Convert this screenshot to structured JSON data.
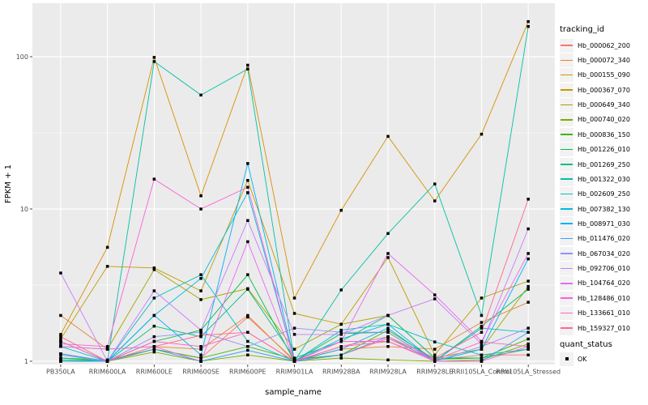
{
  "colors": {
    "panel_background": "#EBEBEB",
    "gridline_major": "#FFFFFF",
    "gridline_minor": "#F5F5F5",
    "legend_key_background": "#F2F2F2",
    "axis_text": "#4D4D4D",
    "axis_tick": "#333333",
    "axis_title": "#000000",
    "point": "#000000"
  },
  "legend": {
    "tracking_title": "tracking_id",
    "quant_title": "quant_status",
    "quant_items": [
      {
        "label": "OK",
        "marker": "black-square"
      }
    ]
  },
  "chart_data": {
    "type": "line",
    "title": "",
    "xlabel": "sample_name",
    "ylabel": "FPKM + 1",
    "y_scale": "log10",
    "ylim": [
      1,
      200
    ],
    "y_ticks": [
      1,
      10,
      100
    ],
    "grid": "white major gridlines with log minor lines on gray panel",
    "legend_position": "right",
    "point_marker": "filled-black-square",
    "categories": [
      "PB350LA",
      "RRIM600LA",
      "RRIM600LE",
      "RRIM600SE",
      "RRIM600PE",
      "RRIM901LA",
      "RRIM928BA",
      "RRIM928LA",
      "RRIM928LE",
      "RRII105LA_Control",
      "RRII105LA_Stressed"
    ],
    "series": [
      {
        "name": "Hb_000062_200",
        "color": "#F8766D",
        "values": [
          1.12,
          1.0,
          1.2,
          1.05,
          1.95,
          1.02,
          1.1,
          1.41,
          1.02,
          1.1,
          1.1
        ]
      },
      {
        "name": "Hb_000072_340",
        "color": "#EA8331",
        "values": [
          2.0,
          1.2,
          1.25,
          1.2,
          2.0,
          1.0,
          1.2,
          1.25,
          1.2,
          1.8,
          2.44
        ]
      },
      {
        "name": "Hb_000155_090",
        "color": "#D89000",
        "values": [
          1.5,
          5.6,
          99.0,
          12.2,
          88.0,
          2.6,
          9.8,
          30.0,
          11.3,
          31.0,
          170.0
        ]
      },
      {
        "name": "Hb_000367_070",
        "color": "#C09B00",
        "values": [
          1.4,
          4.2,
          4.1,
          2.9,
          15.4,
          2.06,
          1.75,
          4.8,
          1.1,
          2.6,
          3.36
        ]
      },
      {
        "name": "Hb_000649_340",
        "color": "#A3A500",
        "values": [
          1.25,
          1.2,
          4.0,
          2.54,
          3.0,
          1.2,
          1.75,
          2.0,
          1.05,
          1.2,
          3.1
        ]
      },
      {
        "name": "Hb_000740_020",
        "color": "#7CAE00",
        "values": [
          1.0,
          1.0,
          1.15,
          1.0,
          1.1,
          1.0,
          1.05,
          1.02,
          1.0,
          1.02,
          1.3
        ]
      },
      {
        "name": "Hb_000836_150",
        "color": "#39B600",
        "values": [
          1.05,
          1.02,
          1.2,
          1.05,
          1.25,
          1.03,
          1.1,
          1.6,
          1.03,
          1.05,
          1.4
        ]
      },
      {
        "name": "Hb_001226_010",
        "color": "#00BB4E",
        "values": [
          1.02,
          1.0,
          1.35,
          1.6,
          3.7,
          1.0,
          1.52,
          1.55,
          1.0,
          1.7,
          2.97
        ]
      },
      {
        "name": "Hb_001269_250",
        "color": "#00BF7D",
        "values": [
          1.05,
          1.0,
          1.7,
          1.45,
          2.97,
          1.05,
          1.35,
          2.0,
          1.05,
          1.05,
          1.2
        ]
      },
      {
        "name": "Hb_001322_030",
        "color": "#00C1A3",
        "values": [
          1.0,
          1.0,
          93.0,
          56.0,
          83.0,
          1.0,
          2.94,
          6.9,
          14.6,
          2.0,
          158.0
        ]
      },
      {
        "name": "Hb_002609_250",
        "color": "#00BFC4",
        "values": [
          1.35,
          1.0,
          2.6,
          3.7,
          1.35,
          1.0,
          1.6,
          1.75,
          1.34,
          1.1,
          1.2
        ]
      },
      {
        "name": "Hb_007382_130",
        "color": "#00BAE0",
        "values": [
          1.25,
          1.0,
          2.0,
          3.5,
          12.8,
          1.0,
          1.4,
          1.75,
          1.0,
          1.65,
          1.55
        ]
      },
      {
        "name": "Hb_008971_030",
        "color": "#00B0F6",
        "values": [
          1.12,
          1.0,
          2.0,
          1.1,
          19.9,
          1.0,
          1.2,
          1.65,
          1.0,
          1.2,
          4.7
        ]
      },
      {
        "name": "Hb_011476_020",
        "color": "#35A2FF",
        "values": [
          1.0,
          1.0,
          1.2,
          1.0,
          1.18,
          1.0,
          1.1,
          1.45,
          1.0,
          1.0,
          1.55
        ]
      },
      {
        "name": "Hb_067034_020",
        "color": "#9590FF",
        "values": [
          1.1,
          1.0,
          1.45,
          1.55,
          1.25,
          1.65,
          1.55,
          1.55,
          1.0,
          1.25,
          1.65
        ]
      },
      {
        "name": "Hb_092706_010",
        "color": "#C77CFF",
        "values": [
          3.8,
          1.0,
          2.9,
          1.6,
          8.4,
          1.5,
          1.5,
          2.0,
          2.57,
          1.3,
          7.4
        ]
      },
      {
        "name": "Hb_104764_020",
        "color": "#E76BF3",
        "values": [
          1.25,
          1.2,
          1.25,
          1.0,
          6.1,
          1.0,
          1.35,
          5.1,
          2.73,
          1.35,
          5.1
        ]
      },
      {
        "name": "Hb_128486_010",
        "color": "#FA62DB",
        "values": [
          1.3,
          1.25,
          15.7,
          10.0,
          13.9,
          1.0,
          1.35,
          1.35,
          1.0,
          1.0,
          1.25
        ]
      },
      {
        "name": "Hb_133661_010",
        "color": "#FF62BC",
        "values": [
          1.35,
          1.0,
          1.35,
          1.25,
          1.55,
          1.0,
          1.25,
          1.35,
          1.02,
          1.34,
          1.25
        ]
      },
      {
        "name": "Hb_159327_010",
        "color": "#FF6598",
        "values": [
          1.45,
          1.0,
          1.25,
          1.48,
          1.55,
          1.0,
          1.25,
          1.45,
          1.05,
          1.55,
          11.6
        ]
      }
    ]
  }
}
